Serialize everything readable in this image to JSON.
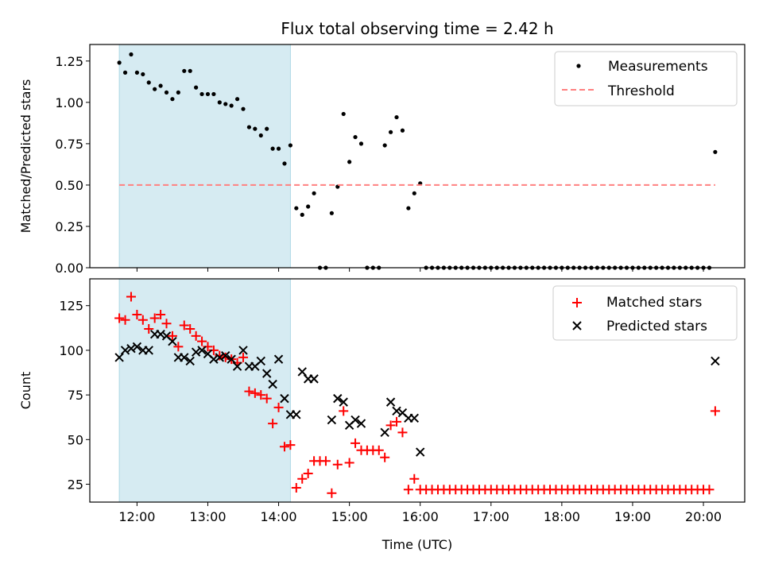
{
  "chart_data": [
    {
      "type": "scatter",
      "title": "Flux total observing time = 2.42 h",
      "xlabel": "",
      "ylabel": "Matched/Predicted stars",
      "xlim": [
        "11:20",
        "20:35"
      ],
      "ylim": [
        0,
        1.35
      ],
      "x_ticks": [
        "12:00",
        "13:00",
        "14:00",
        "15:00",
        "16:00",
        "17:00",
        "18:00",
        "19:00",
        "20:00"
      ],
      "y_ticks": [
        "0.00",
        "0.25",
        "0.50",
        "0.75",
        "1.00",
        "1.25"
      ],
      "shaded_interval": [
        "11:45",
        "14:10"
      ],
      "legend": {
        "placement": "upper right",
        "entries": [
          "Measurements",
          "Threshold"
        ]
      },
      "series": [
        {
          "name": "Measurements",
          "color": "#000000",
          "marker": "dot",
          "points": [
            [
              "11:45",
              1.24
            ],
            [
              "11:50",
              1.18
            ],
            [
              "11:55",
              1.29
            ],
            [
              "12:00",
              1.18
            ],
            [
              "12:05",
              1.17
            ],
            [
              "12:10",
              1.12
            ],
            [
              "12:15",
              1.08
            ],
            [
              "12:20",
              1.1
            ],
            [
              "12:25",
              1.06
            ],
            [
              "12:30",
              1.02
            ],
            [
              "12:35",
              1.06
            ],
            [
              "12:40",
              1.19
            ],
            [
              "12:45",
              1.19
            ],
            [
              "12:50",
              1.09
            ],
            [
              "12:55",
              1.05
            ],
            [
              "13:00",
              1.05
            ],
            [
              "13:05",
              1.05
            ],
            [
              "13:10",
              1.0
            ],
            [
              "13:15",
              0.99
            ],
            [
              "13:20",
              0.98
            ],
            [
              "13:25",
              1.02
            ],
            [
              "13:30",
              0.96
            ],
            [
              "13:35",
              0.85
            ],
            [
              "13:40",
              0.84
            ],
            [
              "13:45",
              0.8
            ],
            [
              "13:50",
              0.84
            ],
            [
              "13:55",
              0.72
            ],
            [
              "14:00",
              0.72
            ],
            [
              "14:05",
              0.63
            ],
            [
              "14:10",
              0.74
            ],
            [
              "14:15",
              0.36
            ],
            [
              "14:20",
              0.32
            ],
            [
              "14:25",
              0.37
            ],
            [
              "14:30",
              0.45
            ],
            [
              "14:35",
              0.0
            ],
            [
              "14:40",
              0.0
            ],
            [
              "14:45",
              0.33
            ],
            [
              "14:50",
              0.49
            ],
            [
              "14:55",
              0.93
            ],
            [
              "15:00",
              0.64
            ],
            [
              "15:05",
              0.79
            ],
            [
              "15:10",
              0.75
            ],
            [
              "15:15",
              0.0
            ],
            [
              "15:20",
              0.0
            ],
            [
              "15:25",
              0.0
            ],
            [
              "15:30",
              0.74
            ],
            [
              "15:35",
              0.82
            ],
            [
              "15:40",
              0.91
            ],
            [
              "15:45",
              0.83
            ],
            [
              "15:50",
              0.36
            ],
            [
              "15:55",
              0.45
            ],
            [
              "16:00",
              0.51
            ],
            [
              "16:05",
              0.0
            ],
            [
              "16:10",
              0.0
            ],
            [
              "16:15",
              0.0
            ],
            [
              "16:20",
              0.0
            ],
            [
              "16:25",
              0.0
            ],
            [
              "16:30",
              0.0
            ],
            [
              "16:35",
              0.0
            ],
            [
              "16:40",
              0.0
            ],
            [
              "16:45",
              0.0
            ],
            [
              "16:50",
              0.0
            ],
            [
              "16:55",
              0.0
            ],
            [
              "17:00",
              0.0
            ],
            [
              "17:05",
              0.0
            ],
            [
              "17:10",
              0.0
            ],
            [
              "17:15",
              0.0
            ],
            [
              "17:20",
              0.0
            ],
            [
              "17:25",
              0.0
            ],
            [
              "17:30",
              0.0
            ],
            [
              "17:35",
              0.0
            ],
            [
              "17:40",
              0.0
            ],
            [
              "17:45",
              0.0
            ],
            [
              "17:50",
              0.0
            ],
            [
              "17:55",
              0.0
            ],
            [
              "18:00",
              0.0
            ],
            [
              "18:05",
              0.0
            ],
            [
              "18:10",
              0.0
            ],
            [
              "18:15",
              0.0
            ],
            [
              "18:20",
              0.0
            ],
            [
              "18:25",
              0.0
            ],
            [
              "18:30",
              0.0
            ],
            [
              "18:35",
              0.0
            ],
            [
              "18:40",
              0.0
            ],
            [
              "18:45",
              0.0
            ],
            [
              "18:50",
              0.0
            ],
            [
              "18:55",
              0.0
            ],
            [
              "19:00",
              0.0
            ],
            [
              "19:05",
              0.0
            ],
            [
              "19:10",
              0.0
            ],
            [
              "19:15",
              0.0
            ],
            [
              "19:20",
              0.0
            ],
            [
              "19:25",
              0.0
            ],
            [
              "19:30",
              0.0
            ],
            [
              "19:35",
              0.0
            ],
            [
              "19:40",
              0.0
            ],
            [
              "19:45",
              0.0
            ],
            [
              "19:50",
              0.0
            ],
            [
              "19:55",
              0.0
            ],
            [
              "20:00",
              0.0
            ],
            [
              "20:05",
              0.0
            ],
            [
              "20:10",
              0.7
            ]
          ]
        },
        {
          "name": "Threshold",
          "color": "#ff8080",
          "style": "dashed",
          "points": [
            [
              "11:45",
              0.5
            ],
            [
              "20:10",
              0.5
            ]
          ]
        }
      ]
    },
    {
      "type": "scatter",
      "title": "",
      "xlabel": "Time (UTC)",
      "ylabel": "Count",
      "xlim": [
        "11:20",
        "20:35"
      ],
      "ylim": [
        15,
        140
      ],
      "x_ticks": [
        "12:00",
        "13:00",
        "14:00",
        "15:00",
        "16:00",
        "17:00",
        "18:00",
        "19:00",
        "20:00"
      ],
      "y_ticks": [
        "25",
        "50",
        "75",
        "100",
        "125"
      ],
      "shaded_interval": [
        "11:45",
        "14:10"
      ],
      "legend": {
        "placement": "upper right",
        "entries": [
          "Matched stars",
          "Predicted stars"
        ]
      },
      "series": [
        {
          "name": "Matched stars",
          "color": "#ff0000",
          "marker": "plus",
          "points": [
            [
              "11:45",
              118
            ],
            [
              "11:50",
              117
            ],
            [
              "11:55",
              130
            ],
            [
              "12:00",
              120
            ],
            [
              "12:05",
              117
            ],
            [
              "12:10",
              112
            ],
            [
              "12:15",
              118
            ],
            [
              "12:20",
              120
            ],
            [
              "12:25",
              115
            ],
            [
              "12:30",
              108
            ],
            [
              "12:35",
              102
            ],
            [
              "12:40",
              114
            ],
            [
              "12:45",
              112
            ],
            [
              "12:50",
              108
            ],
            [
              "12:55",
              105
            ],
            [
              "13:00",
              102
            ],
            [
              "13:05",
              100
            ],
            [
              "13:10",
              97
            ],
            [
              "13:15",
              96
            ],
            [
              "13:20",
              95
            ],
            [
              "13:25",
              93
            ],
            [
              "13:30",
              96
            ],
            [
              "13:35",
              77
            ],
            [
              "13:40",
              76
            ],
            [
              "13:45",
              75
            ],
            [
              "13:50",
              73
            ],
            [
              "13:55",
              59
            ],
            [
              "14:00",
              68
            ],
            [
              "14:05",
              46
            ],
            [
              "14:10",
              47
            ],
            [
              "14:15",
              23
            ],
            [
              "14:20",
              28
            ],
            [
              "14:25",
              31
            ],
            [
              "14:30",
              38
            ],
            [
              "14:35",
              38
            ],
            [
              "14:40",
              38
            ],
            [
              "14:45",
              20
            ],
            [
              "14:50",
              36
            ],
            [
              "14:55",
              66
            ],
            [
              "15:00",
              37
            ],
            [
              "15:05",
              48
            ],
            [
              "15:10",
              44
            ],
            [
              "15:15",
              44
            ],
            [
              "15:20",
              44
            ],
            [
              "15:25",
              44
            ],
            [
              "15:30",
              40
            ],
            [
              "15:35",
              58
            ],
            [
              "15:40",
              60
            ],
            [
              "15:45",
              54
            ],
            [
              "15:50",
              22
            ],
            [
              "15:55",
              28
            ],
            [
              "16:00",
              22
            ],
            [
              "16:05",
              22
            ],
            [
              "16:10",
              22
            ],
            [
              "16:15",
              22
            ],
            [
              "16:20",
              22
            ],
            [
              "16:25",
              22
            ],
            [
              "16:30",
              22
            ],
            [
              "16:35",
              22
            ],
            [
              "16:40",
              22
            ],
            [
              "16:45",
              22
            ],
            [
              "16:50",
              22
            ],
            [
              "16:55",
              22
            ],
            [
              "17:00",
              22
            ],
            [
              "17:05",
              22
            ],
            [
              "17:10",
              22
            ],
            [
              "17:15",
              22
            ],
            [
              "17:20",
              22
            ],
            [
              "17:25",
              22
            ],
            [
              "17:30",
              22
            ],
            [
              "17:35",
              22
            ],
            [
              "17:40",
              22
            ],
            [
              "17:45",
              22
            ],
            [
              "17:50",
              22
            ],
            [
              "17:55",
              22
            ],
            [
              "18:00",
              22
            ],
            [
              "18:05",
              22
            ],
            [
              "18:10",
              22
            ],
            [
              "18:15",
              22
            ],
            [
              "18:20",
              22
            ],
            [
              "18:25",
              22
            ],
            [
              "18:30",
              22
            ],
            [
              "18:35",
              22
            ],
            [
              "18:40",
              22
            ],
            [
              "18:45",
              22
            ],
            [
              "18:50",
              22
            ],
            [
              "18:55",
              22
            ],
            [
              "19:00",
              22
            ],
            [
              "19:05",
              22
            ],
            [
              "19:10",
              22
            ],
            [
              "19:15",
              22
            ],
            [
              "19:20",
              22
            ],
            [
              "19:25",
              22
            ],
            [
              "19:30",
              22
            ],
            [
              "19:35",
              22
            ],
            [
              "19:40",
              22
            ],
            [
              "19:45",
              22
            ],
            [
              "19:50",
              22
            ],
            [
              "19:55",
              22
            ],
            [
              "20:00",
              22
            ],
            [
              "20:05",
              22
            ],
            [
              "20:10",
              66
            ]
          ]
        },
        {
          "name": "Predicted stars",
          "color": "#000000",
          "marker": "x",
          "points": [
            [
              "11:45",
              96
            ],
            [
              "11:50",
              100
            ],
            [
              "11:55",
              101
            ],
            [
              "12:00",
              102
            ],
            [
              "12:05",
              100
            ],
            [
              "12:10",
              100
            ],
            [
              "12:15",
              109
            ],
            [
              "12:20",
              109
            ],
            [
              "12:25",
              108
            ],
            [
              "12:30",
              105
            ],
            [
              "12:35",
              96
            ],
            [
              "12:40",
              96
            ],
            [
              "12:45",
              94
            ],
            [
              "12:50",
              99
            ],
            [
              "12:55",
              100
            ],
            [
              "13:00",
              98
            ],
            [
              "13:05",
              95
            ],
            [
              "13:10",
              96
            ],
            [
              "13:15",
              97
            ],
            [
              "13:20",
              95
            ],
            [
              "13:25",
              91
            ],
            [
              "13:30",
              100
            ],
            [
              "13:35",
              91
            ],
            [
              "13:40",
              91
            ],
            [
              "13:45",
              94
            ],
            [
              "13:50",
              87
            ],
            [
              "13:55",
              81
            ],
            [
              "14:00",
              95
            ],
            [
              "14:05",
              73
            ],
            [
              "14:10",
              64
            ],
            [
              "14:15",
              64
            ],
            [
              "14:20",
              88
            ],
            [
              "14:25",
              84
            ],
            [
              "14:30",
              84
            ],
            [
              "14:45",
              61
            ],
            [
              "14:50",
              73
            ],
            [
              "14:55",
              71
            ],
            [
              "15:00",
              58
            ],
            [
              "15:05",
              61
            ],
            [
              "15:10",
              59
            ],
            [
              "15:30",
              54
            ],
            [
              "15:35",
              71
            ],
            [
              "15:40",
              66
            ],
            [
              "15:45",
              65
            ],
            [
              "15:50",
              62
            ],
            [
              "15:55",
              62
            ],
            [
              "16:00",
              43
            ],
            [
              "20:10",
              94
            ]
          ]
        }
      ]
    }
  ]
}
